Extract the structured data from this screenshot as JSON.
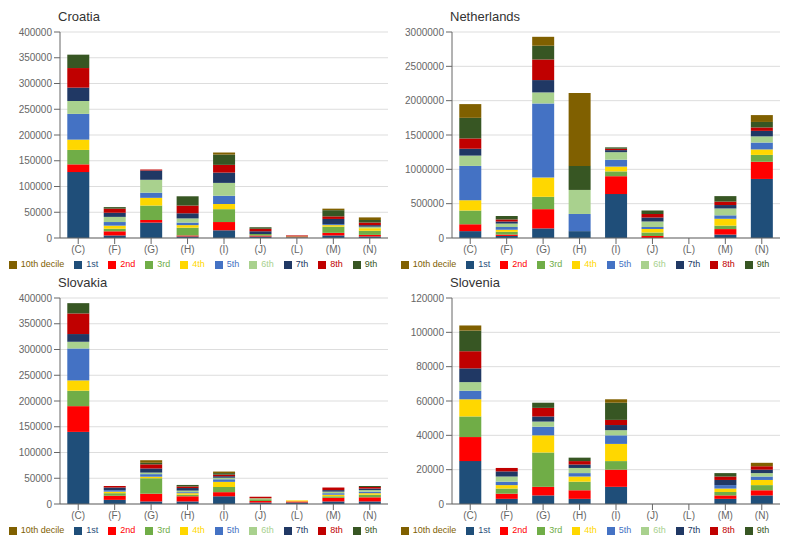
{
  "chart_data": [
    {
      "type": "bar",
      "title": "Croatia",
      "stacked": true,
      "grid": true,
      "legend": "bottom",
      "categories": [
        "(C)",
        "(F)",
        "(G)",
        "(H)",
        "(I)",
        "(J)",
        "(L)",
        "(M)",
        "(N)"
      ],
      "ylim": [
        0,
        400000
      ],
      "yticks": [
        0,
        50000,
        100000,
        150000,
        200000,
        250000,
        300000,
        350000,
        400000
      ],
      "series": [
        {
          "name": "1st",
          "color": "#1F4E79",
          "values": [
            128000,
            5000,
            30000,
            3000,
            15000,
            3000,
            1000,
            5000,
            3000
          ]
        },
        {
          "name": "2nd",
          "color": "#FF0000",
          "values": [
            15000,
            8000,
            5000,
            2000,
            16000,
            2000,
            500,
            5000,
            3000
          ]
        },
        {
          "name": "3rd",
          "color": "#70AD47",
          "values": [
            28000,
            5000,
            28000,
            15000,
            25000,
            3000,
            1000,
            12000,
            8000
          ]
        },
        {
          "name": "4th",
          "color": "#FFD700",
          "values": [
            20000,
            6000,
            15000,
            5000,
            10000,
            0,
            500,
            3000,
            5000
          ]
        },
        {
          "name": "5th",
          "color": "#4472C4",
          "values": [
            50000,
            7000,
            10000,
            5000,
            16000,
            0,
            0,
            2000,
            0
          ]
        },
        {
          "name": "6th",
          "color": "#A9D18E",
          "values": [
            25000,
            10000,
            25000,
            8000,
            25000,
            0,
            0,
            0,
            3000
          ]
        },
        {
          "name": "7th",
          "color": "#203864",
          "values": [
            26000,
            8000,
            18000,
            10000,
            20000,
            5000,
            0,
            10000,
            3000
          ]
        },
        {
          "name": "8th",
          "color": "#C00000",
          "values": [
            38000,
            8000,
            2000,
            15000,
            15000,
            5000,
            2000,
            5000,
            5000
          ]
        },
        {
          "name": "9th",
          "color": "#375623",
          "values": [
            26000,
            3000,
            0,
            18000,
            20000,
            3000,
            0,
            12000,
            5000
          ]
        },
        {
          "name": "10th decile",
          "color": "#806000",
          "values": [
            0,
            0,
            0,
            0,
            4000,
            0,
            0,
            3000,
            5000
          ]
        }
      ]
    },
    {
      "type": "bar",
      "title": "Netherlands",
      "stacked": true,
      "grid": true,
      "legend": "bottom",
      "categories": [
        "(C)",
        "(F)",
        "(G)",
        "(H)",
        "(I)",
        "(J)",
        "(L)",
        "(M)",
        "(N)"
      ],
      "ylim": [
        0,
        3000000
      ],
      "yticks": [
        0,
        500000,
        1000000,
        1500000,
        2000000,
        2500000,
        3000000
      ],
      "series": [
        {
          "name": "1st",
          "color": "#1F4E79",
          "values": [
            100000,
            30000,
            140000,
            100000,
            640000,
            0,
            0,
            50000,
            860000
          ]
        },
        {
          "name": "2nd",
          "color": "#FF0000",
          "values": [
            100000,
            20000,
            280000,
            0,
            260000,
            30000,
            0,
            80000,
            250000
          ]
        },
        {
          "name": "3rd",
          "color": "#70AD47",
          "values": [
            200000,
            40000,
            180000,
            0,
            70000,
            50000,
            0,
            50000,
            100000
          ]
        },
        {
          "name": "4th",
          "color": "#FFD700",
          "values": [
            150000,
            30000,
            280000,
            0,
            70000,
            50000,
            0,
            100000,
            80000
          ]
        },
        {
          "name": "5th",
          "color": "#4472C4",
          "values": [
            500000,
            40000,
            1080000,
            250000,
            100000,
            30000,
            0,
            50000,
            100000
          ]
        },
        {
          "name": "6th",
          "color": "#A9D18E",
          "values": [
            150000,
            50000,
            160000,
            350000,
            110000,
            80000,
            0,
            100000,
            90000
          ]
        },
        {
          "name": "7th",
          "color": "#203864",
          "values": [
            100000,
            30000,
            180000,
            0,
            30000,
            60000,
            0,
            50000,
            80000
          ]
        },
        {
          "name": "8th",
          "color": "#C00000",
          "values": [
            150000,
            30000,
            300000,
            0,
            20000,
            50000,
            0,
            50000,
            50000
          ]
        },
        {
          "name": "9th",
          "color": "#375623",
          "values": [
            300000,
            50000,
            200000,
            350000,
            20000,
            50000,
            0,
            80000,
            80000
          ]
        },
        {
          "name": "10th decile",
          "color": "#806000",
          "values": [
            200000,
            0,
            130000,
            1060000,
            0,
            0,
            0,
            0,
            100000
          ]
        }
      ]
    },
    {
      "type": "bar",
      "title": "Slovakia",
      "stacked": true,
      "grid": true,
      "legend": "bottom",
      "categories": [
        "(C)",
        "(F)",
        "(G)",
        "(H)",
        "(I)",
        "(J)",
        "(L)",
        "(M)",
        "(N)"
      ],
      "ylim": [
        0,
        400000
      ],
      "yticks": [
        0,
        50000,
        100000,
        150000,
        200000,
        250000,
        300000,
        350000,
        400000
      ],
      "series": [
        {
          "name": "1st",
          "color": "#1F4E79",
          "values": [
            140000,
            8000,
            5000,
            5000,
            15000,
            3000,
            3000,
            5000,
            5000
          ]
        },
        {
          "name": "2nd",
          "color": "#FF0000",
          "values": [
            50000,
            8000,
            15000,
            10000,
            8000,
            3000,
            2000,
            7000,
            8000
          ]
        },
        {
          "name": "3rd",
          "color": "#70AD47",
          "values": [
            30000,
            5000,
            30000,
            3000,
            10000,
            3000,
            0,
            3000,
            5000
          ]
        },
        {
          "name": "4th",
          "color": "#FFD700",
          "values": [
            20000,
            3000,
            3000,
            3000,
            10000,
            0,
            2000,
            3000,
            3000
          ]
        },
        {
          "name": "5th",
          "color": "#4472C4",
          "values": [
            62000,
            3000,
            5000,
            2000,
            5000,
            0,
            0,
            3000,
            3000
          ]
        },
        {
          "name": "6th",
          "color": "#A9D18E",
          "values": [
            13000,
            0,
            3000,
            3000,
            3000,
            2000,
            0,
            3000,
            3000
          ]
        },
        {
          "name": "7th",
          "color": "#203864",
          "values": [
            15000,
            5000,
            8000,
            5000,
            3000,
            0,
            0,
            3000,
            3000
          ]
        },
        {
          "name": "8th",
          "color": "#C00000",
          "values": [
            40000,
            3000,
            8000,
            3000,
            3000,
            3000,
            0,
            5000,
            3000
          ]
        },
        {
          "name": "9th",
          "color": "#375623",
          "values": [
            20000,
            0,
            3000,
            3000,
            3000,
            0,
            0,
            0,
            2000
          ]
        },
        {
          "name": "10th decile",
          "color": "#806000",
          "values": [
            0,
            0,
            5000,
            0,
            3000,
            0,
            0,
            0,
            0
          ]
        }
      ]
    },
    {
      "type": "bar",
      "title": "Slovenia",
      "stacked": true,
      "grid": true,
      "legend": "bottom",
      "categories": [
        "(C)",
        "(F)",
        "(G)",
        "(H)",
        "(I)",
        "(J)",
        "(L)",
        "(M)",
        "(N)"
      ],
      "ylim": [
        0,
        120000
      ],
      "yticks": [
        0,
        20000,
        40000,
        60000,
        80000,
        100000,
        120000
      ],
      "series": [
        {
          "name": "1st",
          "color": "#1F4E79",
          "values": [
            25000,
            3000,
            5000,
            3000,
            10000,
            0,
            0,
            3000,
            5000
          ]
        },
        {
          "name": "2nd",
          "color": "#FF0000",
          "values": [
            14000,
            3000,
            5000,
            5000,
            10000,
            0,
            0,
            2000,
            3000
          ]
        },
        {
          "name": "3rd",
          "color": "#70AD47",
          "values": [
            12000,
            3000,
            20000,
            5000,
            5000,
            0,
            0,
            2000,
            3000
          ]
        },
        {
          "name": "4th",
          "color": "#FFD700",
          "values": [
            10000,
            2000,
            10000,
            3000,
            10000,
            0,
            0,
            2000,
            3000
          ]
        },
        {
          "name": "5th",
          "color": "#4472C4",
          "values": [
            5000,
            2000,
            5000,
            2000,
            5000,
            0,
            0,
            2000,
            2000
          ]
        },
        {
          "name": "6th",
          "color": "#A9D18E",
          "values": [
            5000,
            3000,
            3000,
            3000,
            3000,
            0,
            0,
            0,
            2000
          ]
        },
        {
          "name": "7th",
          "color": "#203864",
          "values": [
            8000,
            3000,
            3000,
            2000,
            3000,
            0,
            0,
            3000,
            2000
          ]
        },
        {
          "name": "8th",
          "color": "#C00000",
          "values": [
            10000,
            2000,
            5000,
            2000,
            3000,
            0,
            0,
            2000,
            2000
          ]
        },
        {
          "name": "9th",
          "color": "#375623",
          "values": [
            12000,
            0,
            3000,
            2000,
            10000,
            0,
            0,
            2000,
            0
          ]
        },
        {
          "name": "10th decile",
          "color": "#806000",
          "values": [
            3000,
            0,
            0,
            0,
            2000,
            0,
            0,
            0,
            2000
          ]
        }
      ]
    }
  ]
}
